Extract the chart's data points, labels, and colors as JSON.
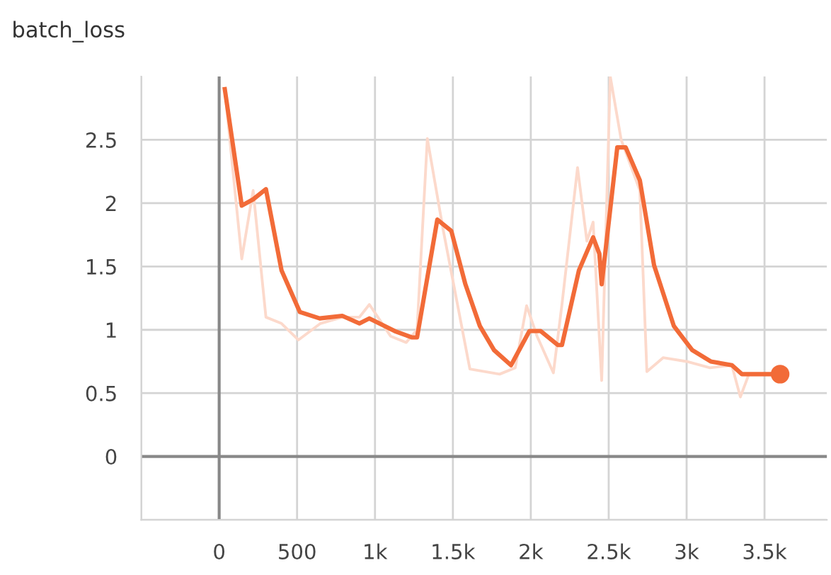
{
  "chart_data": {
    "type": "line",
    "title": "batch_loss",
    "xlim": [
      -500,
      3900
    ],
    "ylim": [
      -0.5,
      3
    ],
    "xticks": [
      {
        "value": -500,
        "label": null
      },
      0,
      500,
      {
        "value": 1000,
        "label": "1k"
      },
      {
        "value": 1500,
        "label": "1.5k"
      },
      {
        "value": 2000,
        "label": "2k"
      },
      {
        "value": 2500,
        "label": "2.5k"
      },
      {
        "value": 3000,
        "label": "3k"
      },
      {
        "value": 3500,
        "label": "3.5k"
      }
    ],
    "yticks": [
      {
        "value": -0.5,
        "label": null
      },
      0,
      0.5,
      1,
      1.5,
      2,
      2.5
    ],
    "grid": true,
    "marker": "none",
    "line_style": "solid",
    "series": [
      {
        "color": "#fcd9cb",
        "x": [
          36,
          145,
          218,
          300,
          400,
          509,
          650,
          790,
          900,
          964,
          1100,
          1200,
          1270,
          1336,
          1436,
          1609,
          1800,
          1900,
          1973,
          2040,
          2145,
          2200,
          2300,
          2360,
          2400,
          2455,
          2510,
          2580,
          2700,
          2745,
          2850,
          3000,
          3150,
          3290,
          3345,
          3400,
          3600
        ],
        "values": [
          2.9,
          1.56,
          2.1,
          1.1,
          1.05,
          0.92,
          1.05,
          1.1,
          1.1,
          1.2,
          0.95,
          0.9,
          1.0,
          2.51,
          1.8,
          0.69,
          0.65,
          0.7,
          1.19,
          0.95,
          0.66,
          1.2,
          2.28,
          1.7,
          1.85,
          0.6,
          3.0,
          2.5,
          2.1,
          0.67,
          0.78,
          0.75,
          0.7,
          0.72,
          0.47,
          0.65,
          0.65
        ]
      },
      {
        "color": "#f26b38",
        "x": [
          36,
          145,
          218,
          300,
          400,
          518,
          645,
          790,
          900,
          964,
          1127,
          1236,
          1270,
          1400,
          1490,
          1580,
          1673,
          1764,
          1873,
          1991,
          2064,
          2173,
          2200,
          2309,
          2400,
          2440,
          2455,
          2555,
          2609,
          2700,
          2791,
          2918,
          3036,
          3155,
          3291,
          3355,
          3600
        ],
        "values": [
          2.9,
          1.98,
          2.03,
          2.11,
          1.47,
          1.14,
          1.09,
          1.11,
          1.05,
          1.09,
          0.99,
          0.94,
          0.94,
          1.87,
          1.78,
          1.36,
          1.03,
          0.84,
          0.72,
          0.99,
          0.99,
          0.88,
          0.88,
          1.47,
          1.73,
          1.6,
          1.36,
          2.44,
          2.44,
          2.18,
          1.51,
          1.03,
          0.84,
          0.75,
          0.72,
          0.65,
          0.65
        ]
      },
      {
        "type": "scatter",
        "marker": "circle",
        "color": "#f26b38",
        "x": [
          3600
        ],
        "values": [
          0.65
        ]
      }
    ]
  }
}
